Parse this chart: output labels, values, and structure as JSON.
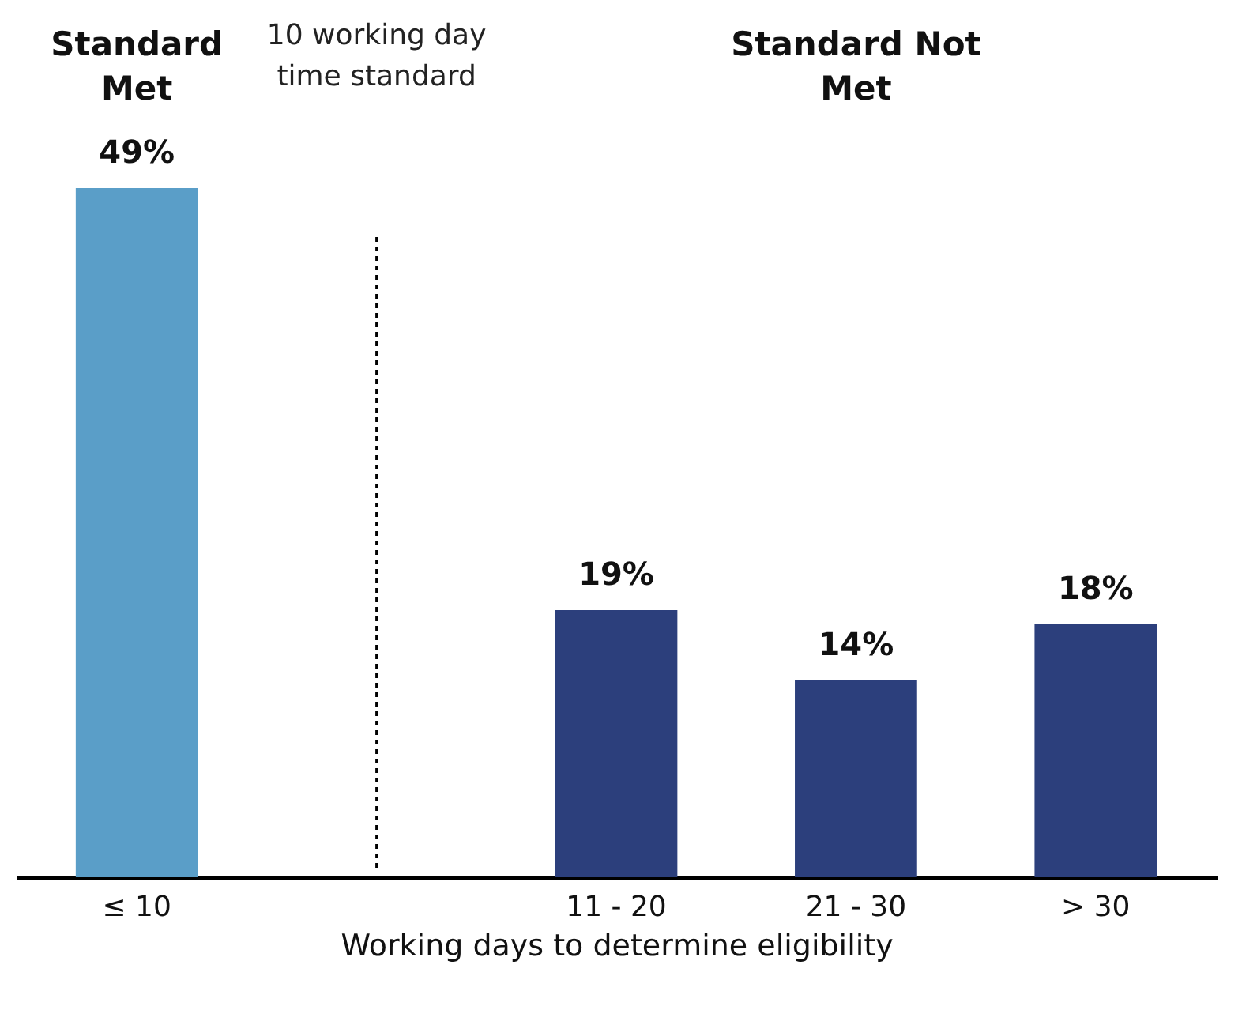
{
  "chart_data": {
    "type": "bar",
    "xlabel": "Working days to determine eligibility",
    "categories": [
      "≤ 10",
      null,
      "11 - 20",
      "21 - 30",
      "> 30"
    ],
    "values": [
      49,
      null,
      19,
      14,
      18
    ],
    "colors": [
      "#5a9ec8",
      null,
      "#2c3f7c",
      "#2c3f7c",
      "#2c3f7c"
    ],
    "value_labels": [
      "49%",
      null,
      "19%",
      "14%",
      "18%"
    ],
    "ref_lines": [
      {
        "axis": "x",
        "label": "10 working day time standard",
        "line_style": "dotted",
        "color": "#000000"
      }
    ],
    "annotations": [
      "Standard Met",
      "Standard Not Met"
    ]
  }
}
